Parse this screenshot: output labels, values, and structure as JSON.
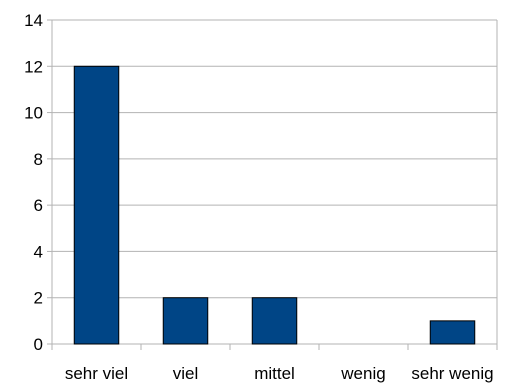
{
  "chart_data": {
    "type": "bar",
    "title": "",
    "xlabel": "",
    "ylabel": "",
    "categories": [
      "sehr viel",
      "viel",
      "mittel",
      "wenig",
      "sehr wenig"
    ],
    "values": [
      12,
      2,
      2,
      0,
      1
    ],
    "ylim": [
      0,
      14
    ],
    "yticks": [
      "0",
      "2",
      "4",
      "6",
      "8",
      "10",
      "12",
      "14"
    ],
    "grid": true,
    "legend": "none",
    "bar_color": "#004586",
    "bar_edge_color": "#000000",
    "grid_color": "#b3b3b3"
  }
}
